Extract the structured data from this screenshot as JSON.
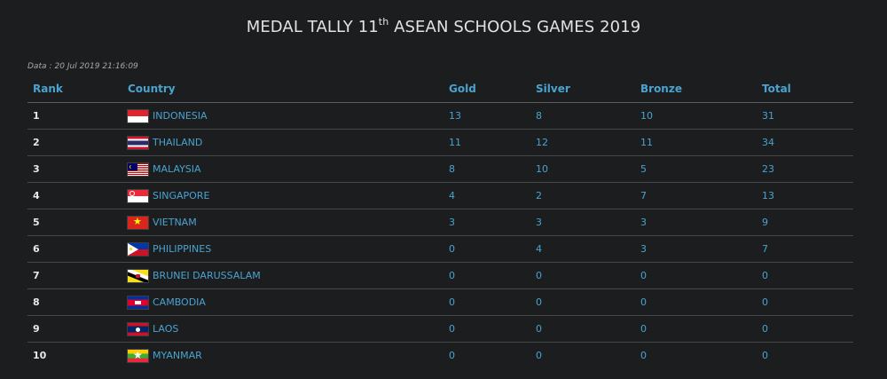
{
  "header": {
    "title_prefix": "MEDAL TALLY 11",
    "title_sup": "th",
    "title_suffix": " ASEAN SCHOOLS GAMES 2019",
    "date_label": "Data",
    "date_sep": ":",
    "date_value": "20 Jul 2019 21:16:09"
  },
  "table": {
    "columns": [
      "Rank",
      "Country",
      "Gold",
      "Silver",
      "Bronze",
      "Total"
    ],
    "rows": [
      {
        "rank": "1",
        "country": "INDONESIA",
        "flag": "flag-indonesia",
        "gold": "13",
        "silver": "8",
        "bronze": "10",
        "total": "31"
      },
      {
        "rank": "2",
        "country": "THAILAND",
        "flag": "flag-thailand",
        "gold": "11",
        "silver": "12",
        "bronze": "11",
        "total": "34"
      },
      {
        "rank": "3",
        "country": "MALAYSIA",
        "flag": "flag-malaysia",
        "gold": "8",
        "silver": "10",
        "bronze": "5",
        "total": "23"
      },
      {
        "rank": "4",
        "country": "SINGAPORE",
        "flag": "flag-singapore",
        "gold": "4",
        "silver": "2",
        "bronze": "7",
        "total": "13"
      },
      {
        "rank": "5",
        "country": "VIETNAM",
        "flag": "flag-vietnam",
        "gold": "3",
        "silver": "3",
        "bronze": "3",
        "total": "9"
      },
      {
        "rank": "6",
        "country": "PHILIPPINES",
        "flag": "flag-philippines",
        "gold": "0",
        "silver": "4",
        "bronze": "3",
        "total": "7"
      },
      {
        "rank": "7",
        "country": "BRUNEI DARUSSALAM",
        "flag": "flag-brunei",
        "gold": "0",
        "silver": "0",
        "bronze": "0",
        "total": "0"
      },
      {
        "rank": "8",
        "country": "CAMBODIA",
        "flag": "flag-cambodia",
        "gold": "0",
        "silver": "0",
        "bronze": "0",
        "total": "0"
      },
      {
        "rank": "9",
        "country": "LAOS",
        "flag": "flag-laos",
        "gold": "0",
        "silver": "0",
        "bronze": "0",
        "total": "0"
      },
      {
        "rank": "10",
        "country": "MYANMAR",
        "flag": "flag-myanmar",
        "gold": "0",
        "silver": "0",
        "bronze": "0",
        "total": "0"
      }
    ]
  },
  "colors": {
    "background": "#1c1d1f",
    "accent_blue": "#4aa3cf",
    "rank_text": "#e8e8e8",
    "title_text": "#e2e2e2",
    "divider": "#47484a"
  }
}
